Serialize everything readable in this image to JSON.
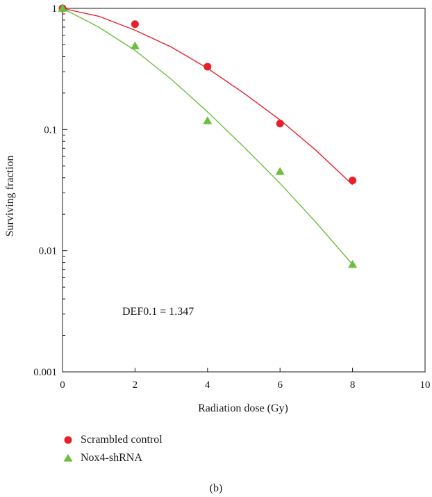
{
  "chart_data": {
    "type": "scatter",
    "xlabel": "Radiation dose (Gy)",
    "ylabel": "Surviving fraction",
    "xlim": [
      0,
      10
    ],
    "ylim": [
      0.001,
      1
    ],
    "yscale": "log",
    "xticks": [
      0,
      2,
      4,
      6,
      8,
      10
    ],
    "yticks": [
      0.001,
      0.01,
      0.1,
      1
    ],
    "ytick_labels": [
      "0.001",
      "0.01",
      "0.1",
      "1"
    ],
    "grid": false,
    "legend_position": "below",
    "annotation": "DEF0.1 = 1.347",
    "caption": "(b)",
    "series": [
      {
        "name": "Scrambled control",
        "color": "#e8202a",
        "marker": "circle",
        "x": [
          0,
          2,
          4,
          6,
          8
        ],
        "y": [
          1.0,
          0.74,
          0.33,
          0.112,
          0.038
        ],
        "fit_x": [
          0,
          1,
          2,
          3,
          4,
          5,
          6,
          7,
          8
        ],
        "fit_y": [
          1.0,
          0.86,
          0.66,
          0.48,
          0.32,
          0.2,
          0.12,
          0.067,
          0.035
        ]
      },
      {
        "name": "Nox4-shRNA",
        "color": "#6cbf3f",
        "marker": "triangle",
        "x": [
          0,
          2,
          4,
          6,
          8
        ],
        "y": [
          1.0,
          0.49,
          0.118,
          0.045,
          0.0077
        ],
        "fit_x": [
          0,
          1,
          2,
          3,
          4,
          5,
          6,
          7,
          8
        ],
        "fit_y": [
          1.0,
          0.7,
          0.45,
          0.26,
          0.14,
          0.072,
          0.036,
          0.017,
          0.0077
        ]
      }
    ]
  }
}
